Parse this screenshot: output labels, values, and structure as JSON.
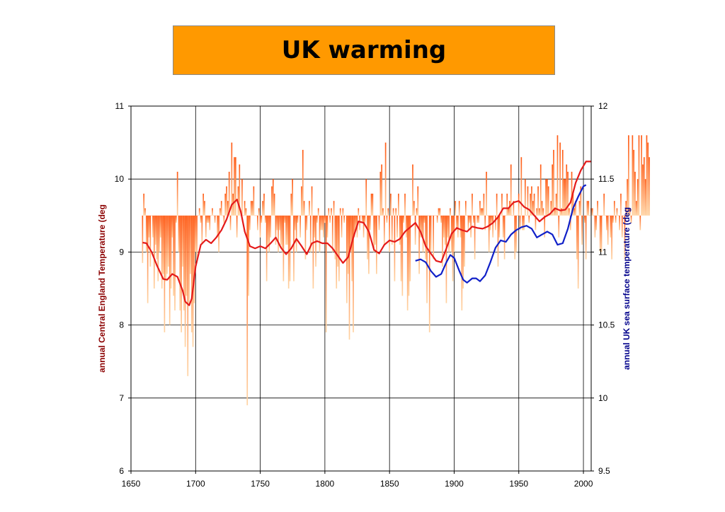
{
  "chart_data": {
    "type": "bar",
    "title": "UK warming",
    "colors": {
      "title_bg": "#ff9900",
      "bar_dark": "#ff5a14",
      "bar_light": "#ffd4a4",
      "smooth_cet": "#e41a1a",
      "sst": "#1020c8",
      "ylabel_left": "#8b0000",
      "ylabel_right": "#00008b"
    },
    "xlabel": "",
    "x_ticks": [
      1650,
      1700,
      1750,
      1800,
      1850,
      1900,
      1950,
      2000
    ],
    "xlim": [
      1650,
      2006
    ],
    "ylabel": "annual Central England Temperature (deg",
    "ylim": [
      6,
      11
    ],
    "y_ticks": [
      6,
      7,
      8,
      9,
      10,
      11
    ],
    "y2label": "annual UK sea surface temperature (deg",
    "y2lim": [
      9.5,
      12
    ],
    "y2_ticks": [
      "9.5",
      "10",
      "10.5",
      "11",
      "11.5",
      "12"
    ],
    "baseline": 9.5,
    "grid": true,
    "series": [
      {
        "axis": "left",
        "kind": "bars",
        "start_year": 1659,
        "values": [
          8.85,
          9.8,
          9.6,
          9.0,
          8.3,
          9.2,
          8.8,
          9.5,
          9.2,
          8.5,
          9.1,
          8.9,
          8.6,
          9.0,
          9.2,
          8.5,
          8.7,
          7.9,
          8.6,
          8.7,
          8.8,
          8.0,
          8.5,
          9.2,
          8.4,
          8.2,
          9.4,
          10.1,
          9.0,
          8.2,
          7.9,
          8.8,
          8.2,
          7.7,
          8.4,
          7.3,
          8.3,
          8.7,
          7.9,
          7.7,
          8.3,
          9.0,
          8.9,
          9.5,
          9.6,
          9.4,
          9.1,
          9.8,
          9.7,
          9.2,
          9.4,
          9.4,
          9.3,
          9.5,
          9.6,
          9.5,
          9.4,
          9.5,
          9.2,
          9.0,
          9.6,
          9.7,
          9.5,
          9.4,
          9.8,
          9.9,
          9.7,
          10.1,
          9.3,
          10.5,
          9.8,
          10.3,
          10.3,
          9.2,
          9.9,
          10.2,
          9.5,
          10.0,
          9.5,
          9.7,
          9.6,
          6.9,
          8.4,
          9.3,
          9.7,
          9.7,
          9.9,
          9.5,
          9.5,
          9.3,
          9.6,
          9.2,
          9.4,
          9.7,
          9.8,
          9.4,
          8.6,
          9.1,
          9.0,
          9.2,
          9.9,
          10.0,
          9.8,
          9.1,
          9.3,
          9.0,
          9.3,
          9.1,
          9.0,
          8.6,
          9.4,
          9.1,
          9.1,
          8.5,
          8.6,
          9.8,
          10.0,
          8.6,
          9.3,
          9.0,
          9.4,
          9.5,
          9.2,
          9.9,
          10.4,
          9.7,
          8.9,
          9.3,
          9.5,
          9.7,
          9.0,
          9.9,
          8.5,
          9.2,
          8.8,
          9.4,
          9.6,
          9.0,
          9.3,
          9.3,
          9.2,
          9.4,
          7.9,
          9.2,
          9.6,
          9.4,
          9.6,
          9.0,
          9.7,
          8.9,
          8.5,
          8.8,
          8.6,
          9.6,
          9.2,
          9.6,
          9.4,
          9.5,
          8.3,
          8.7,
          7.8,
          9.0,
          8.6,
          7.9,
          9.2,
          9.3,
          9.2,
          9.6,
          9.3,
          9.5,
          9.4,
          9.2,
          9.4,
          10.0,
          8.9,
          8.7,
          9.3,
          9.8,
          9.8,
          9.0,
          9.1,
          8.7,
          9.5,
          9.3,
          10.1,
          10.2,
          9.6,
          9.1,
          10.5,
          9.4,
          9.6,
          9.0,
          9.8,
          9.1,
          9.6,
          8.6,
          9.6,
          9.2,
          9.8,
          9.1,
          8.6,
          8.4,
          9.4,
          9.8,
          9.2,
          8.2,
          8.4,
          8.6,
          9.5,
          10.2,
          9.7,
          9.1,
          9.6,
          9.9,
          8.7,
          9.2,
          9.2,
          9.0,
          9.4,
          8.9,
          8.3,
          9.5,
          7.9,
          9.0,
          9.5,
          8.9,
          9.5,
          9.5,
          9.4,
          9.6,
          9.6,
          9.4,
          8.8,
          9.2,
          9.1,
          8.3,
          9.2,
          9.0,
          9.6,
          9.0,
          8.6,
          9.0,
          9.7,
          9.3,
          9.2,
          9.7,
          9.2,
          8.2,
          8.5,
          8.8,
          9.7,
          9.5,
          9.3,
          9.4,
          9.2,
          9.8,
          9.4,
          8.9,
          9.5,
          9.4,
          9.4,
          9.7,
          9.6,
          9.6,
          9.8,
          9.3,
          10.1,
          9.5,
          9.0,
          9.3,
          9.4,
          9.2,
          9.5,
          9.3,
          9.8,
          8.8,
          9.2,
          9.5,
          9.8,
          9.2,
          8.9,
          9.5,
          9.8,
          9.6,
          9.7,
          10.2,
          9.5,
          9.7,
          8.9,
          9.0,
          9.5,
          9.8,
          9.3,
          10.3,
          9.3,
          9.3,
          10.0,
          9.5,
          9.9,
          9.4,
          9.8,
          9.9,
          9.7,
          9.8,
          9.3,
          9.6,
          9.9,
          9.6,
          10.2,
          9.7,
          9.6,
          9.2,
          10.0,
          10.0,
          9.9,
          9.5,
          9.7,
          10.2,
          10.4,
          9.6,
          9.8,
          10.6,
          9.2,
          10.5,
          9.6,
          10.4,
          10.0,
          10.0,
          10.2,
          10.1,
          9.6,
          9.3,
          10.1,
          9.8,
          9.6,
          9.7,
          8.9,
          8.5,
          9.7,
          9.9,
          9.1,
          9.5,
          9.4,
          8.9,
          9.7,
          9.7,
          9.5,
          9.6,
          9.6,
          9.5,
          9.2,
          9.3,
          9.7,
          9.5,
          9.0,
          9.0,
          9.5,
          9.8,
          9.5,
          9.3,
          9.1,
          9.5,
          9.2,
          8.9,
          9.4,
          9.7,
          9.4,
          9.6,
          9.5,
          9.3,
          9.8,
          9.2,
          9.5,
          8.9,
          9.7,
          10.0,
          10.6,
          9.6,
          9.4,
          10.6,
          10.4,
          10.1,
          9.7,
          10.0,
          10.6,
          9.3,
          10.6,
          10.2,
          10.3,
          10.0,
          10.6,
          10.5,
          10.3
        ]
      },
      {
        "axis": "left",
        "kind": "smooth",
        "points": [
          [
            1659,
            9.13
          ],
          [
            1662,
            9.12
          ],
          [
            1666,
            9.0
          ],
          [
            1670,
            8.82
          ],
          [
            1675,
            8.63
          ],
          [
            1678,
            8.62
          ],
          [
            1682,
            8.7
          ],
          [
            1686,
            8.66
          ],
          [
            1690,
            8.47
          ],
          [
            1692,
            8.32
          ],
          [
            1695,
            8.27
          ],
          [
            1697,
            8.36
          ],
          [
            1700,
            8.8
          ],
          [
            1704,
            9.1
          ],
          [
            1708,
            9.17
          ],
          [
            1712,
            9.12
          ],
          [
            1716,
            9.2
          ],
          [
            1720,
            9.3
          ],
          [
            1724,
            9.45
          ],
          [
            1728,
            9.65
          ],
          [
            1732,
            9.72
          ],
          [
            1735,
            9.55
          ],
          [
            1738,
            9.28
          ],
          [
            1742,
            9.08
          ],
          [
            1746,
            9.05
          ],
          [
            1750,
            9.08
          ],
          [
            1754,
            9.05
          ],
          [
            1758,
            9.12
          ],
          [
            1762,
            9.2
          ],
          [
            1766,
            9.06
          ],
          [
            1770,
            8.97
          ],
          [
            1774,
            9.05
          ],
          [
            1778,
            9.18
          ],
          [
            1782,
            9.08
          ],
          [
            1786,
            8.97
          ],
          [
            1790,
            9.12
          ],
          [
            1794,
            9.15
          ],
          [
            1798,
            9.12
          ],
          [
            1802,
            9.12
          ],
          [
            1806,
            9.05
          ],
          [
            1810,
            8.95
          ],
          [
            1814,
            8.85
          ],
          [
            1818,
            8.93
          ],
          [
            1822,
            9.2
          ],
          [
            1826,
            9.42
          ],
          [
            1830,
            9.4
          ],
          [
            1834,
            9.28
          ],
          [
            1838,
            9.03
          ],
          [
            1842,
            8.98
          ],
          [
            1846,
            9.1
          ],
          [
            1850,
            9.16
          ],
          [
            1854,
            9.14
          ],
          [
            1858,
            9.18
          ],
          [
            1862,
            9.28
          ],
          [
            1866,
            9.34
          ],
          [
            1870,
            9.4
          ],
          [
            1874,
            9.28
          ],
          [
            1878,
            9.08
          ],
          [
            1882,
            8.98
          ],
          [
            1886,
            8.88
          ],
          [
            1890,
            8.86
          ],
          [
            1894,
            9.05
          ],
          [
            1898,
            9.25
          ],
          [
            1902,
            9.33
          ],
          [
            1906,
            9.3
          ],
          [
            1910,
            9.28
          ],
          [
            1914,
            9.35
          ],
          [
            1918,
            9.33
          ],
          [
            1922,
            9.32
          ],
          [
            1926,
            9.35
          ],
          [
            1930,
            9.4
          ],
          [
            1934,
            9.48
          ],
          [
            1938,
            9.6
          ],
          [
            1942,
            9.6
          ],
          [
            1946,
            9.68
          ],
          [
            1950,
            9.7
          ],
          [
            1954,
            9.62
          ],
          [
            1958,
            9.58
          ],
          [
            1962,
            9.5
          ],
          [
            1966,
            9.42
          ],
          [
            1970,
            9.48
          ],
          [
            1974,
            9.52
          ],
          [
            1978,
            9.6
          ],
          [
            1982,
            9.57
          ],
          [
            1986,
            9.58
          ],
          [
            1990,
            9.68
          ],
          [
            1994,
            9.95
          ],
          [
            1998,
            10.12
          ],
          [
            2002,
            10.24
          ],
          [
            2006,
            10.24
          ]
        ]
      },
      {
        "axis": "right",
        "kind": "smooth",
        "points": [
          [
            1870,
            10.94
          ],
          [
            1874,
            10.95
          ],
          [
            1878,
            10.93
          ],
          [
            1882,
            10.87
          ],
          [
            1886,
            10.83
          ],
          [
            1890,
            10.85
          ],
          [
            1894,
            10.93
          ],
          [
            1897,
            10.98
          ],
          [
            1900,
            10.96
          ],
          [
            1904,
            10.87
          ],
          [
            1907,
            10.81
          ],
          [
            1910,
            10.79
          ],
          [
            1914,
            10.82
          ],
          [
            1917,
            10.82
          ],
          [
            1920,
            10.8
          ],
          [
            1924,
            10.84
          ],
          [
            1928,
            10.93
          ],
          [
            1932,
            11.03
          ],
          [
            1936,
            11.08
          ],
          [
            1940,
            11.07
          ],
          [
            1944,
            11.12
          ],
          [
            1948,
            11.15
          ],
          [
            1952,
            11.17
          ],
          [
            1956,
            11.18
          ],
          [
            1960,
            11.16
          ],
          [
            1964,
            11.1
          ],
          [
            1968,
            11.12
          ],
          [
            1972,
            11.14
          ],
          [
            1976,
            11.12
          ],
          [
            1980,
            11.05
          ],
          [
            1984,
            11.06
          ],
          [
            1988,
            11.16
          ],
          [
            1992,
            11.3
          ],
          [
            1996,
            11.38
          ],
          [
            2000,
            11.45
          ],
          [
            2002,
            11.46
          ]
        ]
      }
    ]
  }
}
